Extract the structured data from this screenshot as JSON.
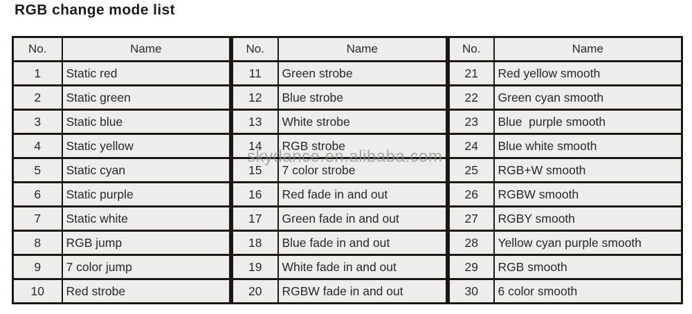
{
  "title": "RGB change mode list",
  "watermark": "skydance.en.alibaba.com",
  "table": {
    "groups": [
      {
        "headers": {
          "no": "No.",
          "name": "Name"
        },
        "rows": [
          {
            "no": "1",
            "name": "Static red"
          },
          {
            "no": "2",
            "name": "Static green"
          },
          {
            "no": "3",
            "name": "Static blue"
          },
          {
            "no": "4",
            "name": "Static yellow"
          },
          {
            "no": "5",
            "name": "Static cyan"
          },
          {
            "no": "6",
            "name": "Static purple"
          },
          {
            "no": "7",
            "name": "Static white"
          },
          {
            "no": "8",
            "name": "RGB jump"
          },
          {
            "no": "9",
            "name": "7 color jump"
          },
          {
            "no": "10",
            "name": "Red strobe"
          }
        ]
      },
      {
        "headers": {
          "no": "No.",
          "name": "Name"
        },
        "rows": [
          {
            "no": "11",
            "name": "Green strobe"
          },
          {
            "no": "12",
            "name": "Blue strobe"
          },
          {
            "no": "13",
            "name": "White strobe"
          },
          {
            "no": "14",
            "name": "RGB strobe"
          },
          {
            "no": "15",
            "name": "7 color strobe"
          },
          {
            "no": "16",
            "name": "Red fade in and out"
          },
          {
            "no": "17",
            "name": "Green fade in and out"
          },
          {
            "no": "18",
            "name": "Blue fade in and out"
          },
          {
            "no": "19",
            "name": "White fade in and out"
          },
          {
            "no": "20",
            "name": "RGBW fade in and out"
          }
        ]
      },
      {
        "headers": {
          "no": "No.",
          "name": "Name"
        },
        "rows": [
          {
            "no": "21",
            "name": "Red yellow smooth"
          },
          {
            "no": "22",
            "name": "Green cyan smooth"
          },
          {
            "no": "23",
            "name": "Blue  purple smooth"
          },
          {
            "no": "24",
            "name": "Blue white smooth"
          },
          {
            "no": "25",
            "name": "RGB+W smooth"
          },
          {
            "no": "26",
            "name": "RGBW smooth"
          },
          {
            "no": "27",
            "name": "RGBY smooth"
          },
          {
            "no": "28",
            "name": "Yellow cyan purple smooth"
          },
          {
            "no": "29",
            "name": "RGB smooth"
          },
          {
            "no": "30",
            "name": "6 color smooth"
          }
        ]
      }
    ]
  }
}
